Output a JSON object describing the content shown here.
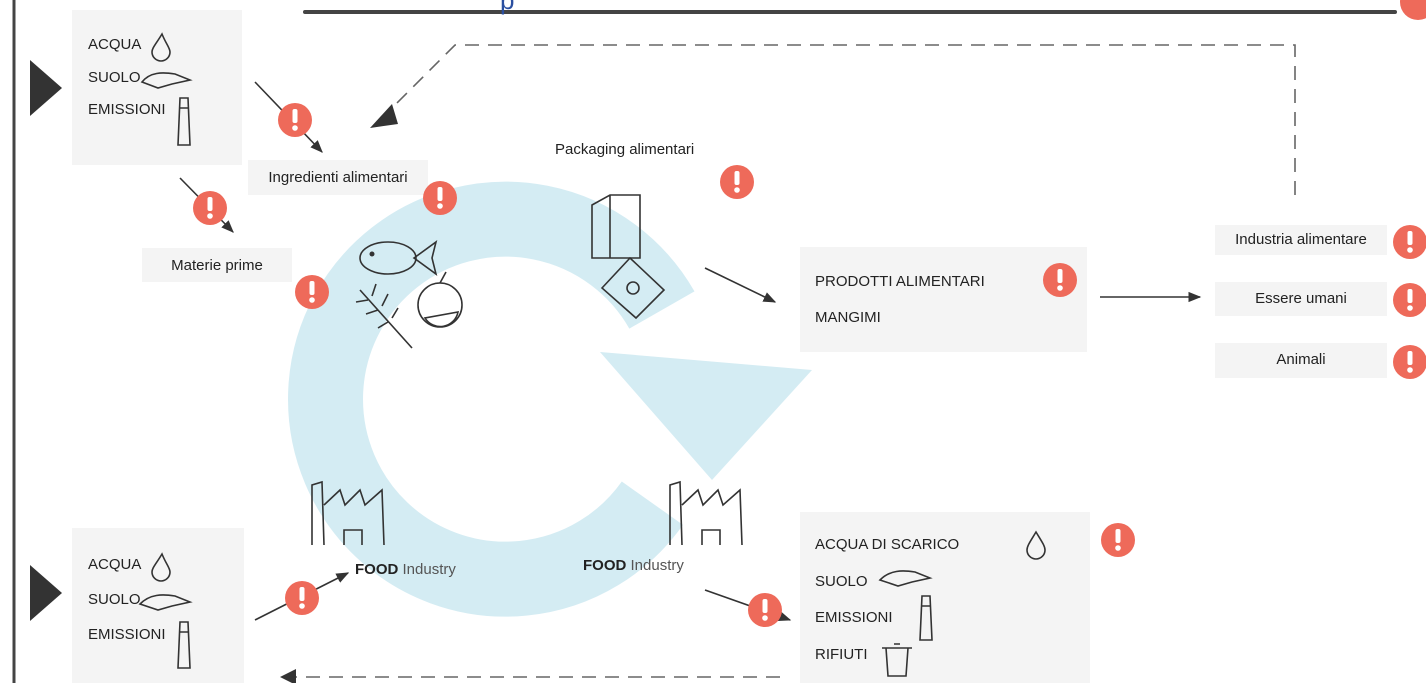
{
  "header": {
    "fragment": "p"
  },
  "sources_top": {
    "items": [
      "ACQUA",
      "SUOLO",
      "EMISSIONI"
    ]
  },
  "labels": {
    "ingredients": "Ingredienti alimentari",
    "packaging": "Packaging alimentari",
    "raw_materials": "Materie prime"
  },
  "products": {
    "items": [
      "PRODOTTI ALIMENTARI",
      "MANGIMI"
    ]
  },
  "consumers": {
    "items": [
      "Industria alimentare",
      "Essere umani",
      "Animali"
    ]
  },
  "sources_bottom": {
    "items": [
      "ACQUA",
      "SUOLO",
      "EMISSIONI"
    ]
  },
  "factories": [
    {
      "bold": "FOOD",
      "light": "Industry"
    },
    {
      "bold": "FOOD",
      "light": "Industry"
    }
  ],
  "outputs": {
    "items": [
      "ACQUA DI SCARICO",
      "SUOLO",
      "EMISSIONI",
      "RIFIUTI"
    ]
  }
}
